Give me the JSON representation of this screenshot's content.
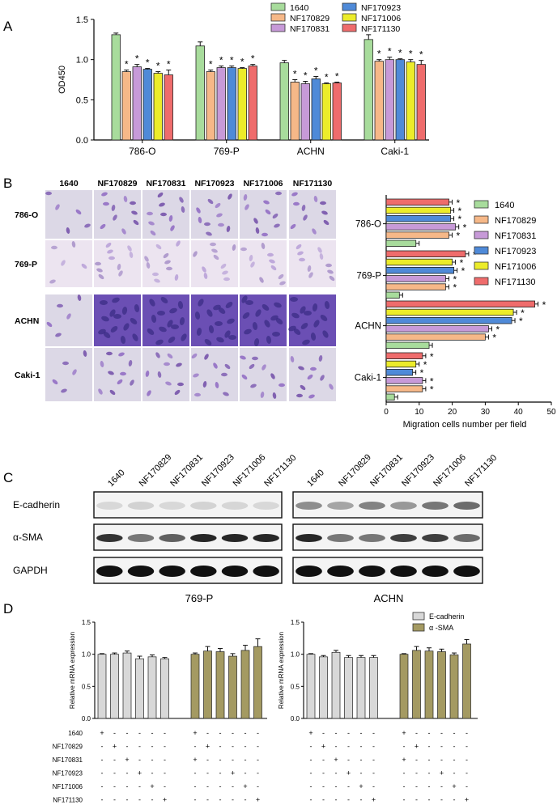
{
  "panels": {
    "a": "A",
    "b": "B",
    "c": "C",
    "d": "D"
  },
  "colors": {
    "1640": "#a8dc9c",
    "NF170829": "#f6b888",
    "NF170831": "#c79ad8",
    "NF170923": "#4f8ad8",
    "NF171006": "#ecec2a",
    "NF171130": "#ef6c6c",
    "ecad": "#d8d8d8",
    "sma": "#a49a62"
  },
  "panelA": {
    "chart_data": {
      "type": "bar",
      "ylabel": "OD450",
      "ylim": [
        0,
        1.5
      ],
      "yticks": [
        "0.0",
        "0.5",
        "1.0",
        "1.5"
      ],
      "categories": [
        "786-O",
        "769-P",
        "ACHN",
        "Caki-1"
      ],
      "series": [
        {
          "name": "1640",
          "values": [
            1.31,
            1.17,
            0.96,
            1.25
          ],
          "err": [
            0.02,
            0.05,
            0.03,
            0.06
          ]
        },
        {
          "name": "NF170829",
          "values": [
            0.85,
            0.85,
            0.72,
            0.98
          ],
          "err": [
            0.02,
            0.02,
            0.03,
            0.02
          ]
        },
        {
          "name": "NF170831",
          "values": [
            0.91,
            0.9,
            0.7,
            1.0
          ],
          "err": [
            0.03,
            0.02,
            0.03,
            0.03
          ]
        },
        {
          "name": "NF170923",
          "values": [
            0.88,
            0.9,
            0.76,
            1.0
          ],
          "err": [
            0.01,
            0.02,
            0.03,
            0.01
          ]
        },
        {
          "name": "NF171006",
          "values": [
            0.83,
            0.89,
            0.7,
            0.97
          ],
          "err": [
            0.02,
            0.01,
            0.01,
            0.03
          ]
        },
        {
          "name": "NF171130",
          "values": [
            0.81,
            0.92,
            0.71,
            0.94
          ],
          "err": [
            0.06,
            0.02,
            0.01,
            0.05
          ]
        }
      ],
      "star": "*"
    }
  },
  "panelB": {
    "columns": [
      "1640",
      "NF170829",
      "NF170831",
      "NF170923",
      "NF171006",
      "NF171130"
    ],
    "rows": [
      "786-O",
      "769-P",
      "ACHN",
      "Caki-1"
    ],
    "chart_data": {
      "type": "bar",
      "orientation": "horizontal",
      "xlabel": "Migration cells number per field",
      "xlim": [
        0,
        50
      ],
      "xticks": [
        "0",
        "10",
        "20",
        "30",
        "40",
        "50"
      ],
      "categories": [
        "786-O",
        "769-P",
        "ACHN",
        "Caki-1"
      ],
      "series": [
        {
          "name": "1640",
          "values": [
            9,
            4,
            13,
            2.5
          ]
        },
        {
          "name": "NF170829",
          "values": [
            19,
            18,
            30,
            11
          ]
        },
        {
          "name": "NF170831",
          "values": [
            21,
            18,
            31,
            11
          ]
        },
        {
          "name": "NF170923",
          "values": [
            19.5,
            20.5,
            38,
            8
          ]
        },
        {
          "name": "NF171006",
          "values": [
            19.5,
            20,
            38.5,
            9
          ]
        },
        {
          "name": "NF171130",
          "values": [
            19,
            24,
            45,
            11
          ]
        }
      ],
      "star": "*"
    }
  },
  "panelC": {
    "lanes": [
      "1640",
      "NF170829",
      "NF170831",
      "NF170923",
      "NF171006",
      "NF171130"
    ],
    "proteins": [
      "E-cadherin",
      "α-SMA",
      "GAPDH"
    ],
    "blots": [
      "769-P",
      "ACHN"
    ],
    "intensity": {
      "769-P": {
        "E-cadherin": [
          0.12,
          0.15,
          0.12,
          0.14,
          0.13,
          0.12
        ],
        "α-SMA": [
          0.85,
          0.55,
          0.65,
          0.9,
          0.9,
          0.9
        ],
        "GAPDH": [
          1,
          1,
          1,
          1,
          1,
          1
        ]
      },
      "ACHN": {
        "E-cadherin": [
          0.45,
          0.35,
          0.5,
          0.4,
          0.55,
          0.6
        ],
        "α-SMA": [
          0.9,
          0.55,
          0.55,
          0.8,
          0.8,
          0.6
        ],
        "GAPDH": [
          1,
          1,
          1,
          1,
          1,
          1
        ]
      }
    }
  },
  "panelD": {
    "legend": [
      "E-cadherin",
      "α -SMA"
    ],
    "ylabel": "Relative mRNA expression",
    "rowLabels": [
      "1640",
      "NF170829",
      "NF170831",
      "NF170923",
      "NF171006",
      "NF171130"
    ],
    "chart_data": [
      {
        "type": "bar",
        "ylim": [
          0,
          1.5
        ],
        "yticks": [
          "0.0",
          "0.5",
          "1.0",
          "1.5"
        ],
        "series": [
          {
            "name": "E-cadherin",
            "values": [
              1.0,
              1.0,
              1.02,
              0.93,
              0.96,
              0.93
            ],
            "err": [
              0.01,
              0.02,
              0.03,
              0.04,
              0.03,
              0.02
            ]
          },
          {
            "name": "α -SMA",
            "values": [
              1.0,
              1.05,
              1.04,
              0.97,
              1.06,
              1.12
            ],
            "err": [
              0.02,
              0.07,
              0.05,
              0.04,
              0.08,
              0.12
            ]
          }
        ],
        "signs": {
          "E-cadherin": [
            [
              "+",
              "-",
              "-",
              "-",
              "-",
              "-"
            ],
            [
              "-",
              "+",
              "-",
              "-",
              "-",
              "-"
            ],
            [
              "-",
              "-",
              "+",
              "-",
              "-",
              "-"
            ],
            [
              "-",
              "-",
              "-",
              "+",
              "-",
              "-"
            ],
            [
              "-",
              "-",
              "-",
              "-",
              "+",
              "-"
            ],
            [
              "-",
              "-",
              "-",
              "-",
              "-",
              "+"
            ]
          ],
          "α -SMA": [
            [
              "+",
              "-",
              "-",
              "-",
              "-",
              "-"
            ],
            [
              "-",
              "+",
              "-",
              "-",
              "-",
              "-"
            ],
            [
              "+",
              "-",
              "-",
              "-",
              "-",
              "-"
            ],
            [
              "-",
              "-",
              "-",
              "+",
              "-",
              "-"
            ],
            [
              "-",
              "-",
              "-",
              "-",
              "+",
              "-"
            ],
            [
              "-",
              "-",
              "-",
              "-",
              "-",
              "+"
            ]
          ]
        }
      },
      {
        "type": "bar",
        "ylim": [
          0,
          1.5
        ],
        "yticks": [
          "0.0",
          "0.5",
          "1.0",
          "1.5"
        ],
        "series": [
          {
            "name": "E-cadherin",
            "values": [
              1.0,
              0.96,
              1.03,
              0.95,
              0.95,
              0.95
            ],
            "err": [
              0.01,
              0.02,
              0.03,
              0.03,
              0.03,
              0.03
            ]
          },
          {
            "name": "α -SMA",
            "values": [
              1.0,
              1.06,
              1.05,
              1.04,
              0.99,
              1.16
            ],
            "err": [
              0.01,
              0.06,
              0.05,
              0.04,
              0.03,
              0.07
            ]
          }
        ],
        "signs": {
          "E-cadherin": [
            [
              "+",
              "-",
              "-",
              "-",
              "-",
              "-"
            ],
            [
              "-",
              "+",
              "-",
              "-",
              "-",
              "-"
            ],
            [
              "-",
              "-",
              "+",
              "-",
              "-",
              "-"
            ],
            [
              "-",
              "-",
              "-",
              "+",
              "-",
              "-"
            ],
            [
              "-",
              "-",
              "-",
              "-",
              "+",
              "-"
            ],
            [
              "-",
              "-",
              "-",
              "-",
              "-",
              "+"
            ]
          ],
          "α -SMA": [
            [
              "+",
              "-",
              "-",
              "-",
              "-",
              "-"
            ],
            [
              "-",
              "+",
              "-",
              "-",
              "-",
              "-"
            ],
            [
              "+",
              "-",
              "-",
              "-",
              "-",
              "-"
            ],
            [
              "-",
              "-",
              "-",
              "+",
              "-",
              "-"
            ],
            [
              "-",
              "-",
              "-",
              "-",
              "+",
              "-"
            ],
            [
              "-",
              "-",
              "-",
              "-",
              "-",
              "+"
            ]
          ]
        }
      }
    ]
  }
}
